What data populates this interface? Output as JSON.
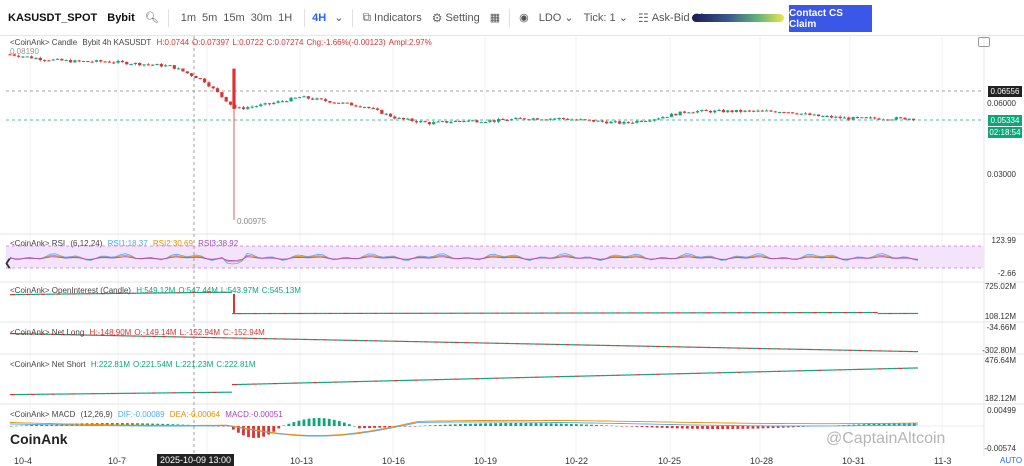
{
  "toolbar": {
    "symbol": "KASUSDT_SPOT",
    "exchange": "Bybit",
    "timeframes": [
      "1m",
      "5m",
      "15m",
      "30m",
      "1H",
      "4H"
    ],
    "active_timeframe": "4H",
    "indicators_label": "Indicators",
    "setting_label": "Setting",
    "ldo_label": "LDO",
    "tick_label": "Tick:",
    "tick_value": "1",
    "askbid_label": "Ask-Bid Cluster",
    "cta_label": "Contact CS Claim"
  },
  "candle_panel": {
    "legend_prefix": "<CoinAnk> Candle",
    "legend_info": "Bybit 4h KASUSDT",
    "open": "H:0.0744",
    "high": "O:0.07397",
    "low": "L:0.0722",
    "close": "C:0.07274",
    "change": "Chg:-1.66%(-0.00123)",
    "amplitude": "Ampl:2.97%",
    "high_marker": "0.08190",
    "low_marker": "0.00975",
    "price_tag_dark": "0.06556",
    "price_tag_green": "0.05334",
    "countdown": "02:18:54",
    "axis_labels": [
      "0.06000",
      "0.03000"
    ]
  },
  "rsi_panel": {
    "legend_prefix": "<CoinAnk> RSI",
    "params": "(6,12,24)",
    "rsi1": "RSI1:18.37",
    "rsi2": "RSI2:30.69",
    "rsi3": "RSI3:38.92",
    "axis_top": "123.99",
    "axis_bottom": "-2.66"
  },
  "oi_panel": {
    "legend_prefix": "<CoinAnk> OpenInterest (Candle)",
    "h": "H:549.12M",
    "o": "O:547.44M",
    "l": "L:543.97M",
    "c": "C:545.13M",
    "axis_top": "725.02M",
    "axis_bottom": "108.12M"
  },
  "netlong_panel": {
    "legend_prefix": "<CoinAnk> Net Long",
    "h": "H:-148.90M",
    "o": "O:-149.14M",
    "l": "L:-152.94M",
    "c": "C:-152.94M",
    "axis_top": "-34.66M",
    "axis_bottom": "-302.80M"
  },
  "netshort_panel": {
    "legend_prefix": "<CoinAnk> Net Short",
    "h": "H:222.81M",
    "o": "O:221.54M",
    "l": "L:221.23M",
    "c": "C:222.81M",
    "axis_top": "476.64M",
    "axis_bottom": "182.12M"
  },
  "macd_panel": {
    "legend_prefix": "<CoinAnk> MACD",
    "params": "(12,26,9)",
    "dif": "DIF:-0.00089",
    "dea": "DEA:-0.00064",
    "macd": "MACD:-0.00051",
    "axis_top": "0.00499",
    "axis_bottom": "-0.00574"
  },
  "x_axis": {
    "labels": [
      "10-4",
      "10-7",
      "10-13",
      "10-16",
      "10-19",
      "10-22",
      "10-25",
      "10-28",
      "10-31",
      "11-3"
    ],
    "crosshair_label": "2025-10-09 13:00"
  },
  "brand": "CoinAnk",
  "watermark": "@CaptainAltcoin",
  "auto_label": "AUTO",
  "colors": {
    "up": "#0ca678",
    "down": "#e03131",
    "rsi1": "#4dabf7",
    "rsi2": "#f08c00",
    "rsi3": "#ae3ec9",
    "accent": "#3b57e8"
  },
  "chart_data": {
    "type": "candlestick",
    "series_note": "KASUSDT 4h close approximations over 10-4 to 11-1",
    "x": [
      "10-4",
      "10-5",
      "10-6",
      "10-7",
      "10-8",
      "10-9",
      "10-10",
      "10-11",
      "10-12",
      "10-13",
      "10-14",
      "10-15",
      "10-16",
      "10-17",
      "10-18",
      "10-19",
      "10-20",
      "10-21",
      "10-22",
      "10-23",
      "10-24",
      "10-25",
      "10-26",
      "10-27",
      "10-28",
      "10-29",
      "10-30",
      "10-31",
      "11-1"
    ],
    "close": [
      0.081,
      0.079,
      0.078,
      0.078,
      0.077,
      0.076,
      0.07,
      0.058,
      0.06,
      0.063,
      0.061,
      0.059,
      0.054,
      0.052,
      0.053,
      0.053,
      0.054,
      0.054,
      0.053,
      0.052,
      0.054,
      0.057,
      0.057,
      0.057,
      0.057,
      0.055,
      0.054,
      0.054,
      0.054
    ]
  }
}
